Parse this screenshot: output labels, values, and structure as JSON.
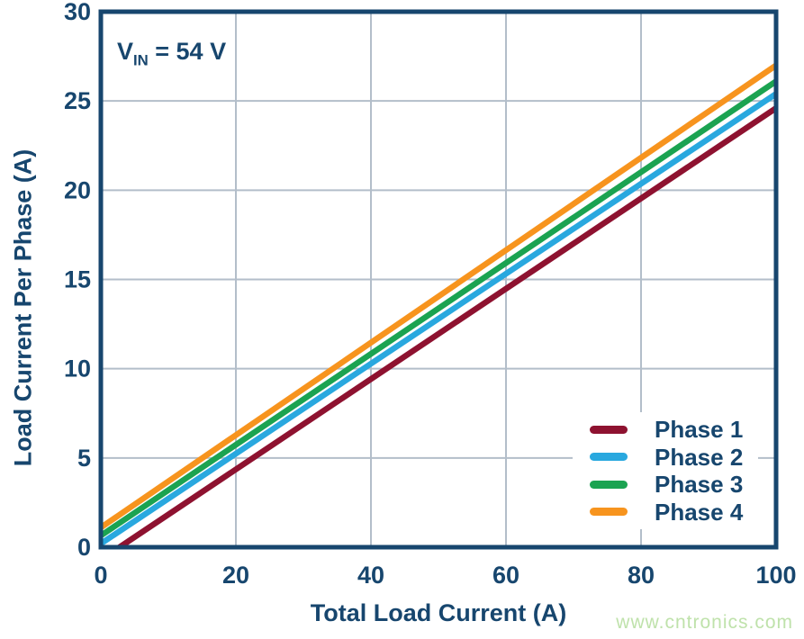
{
  "watermark": {
    "text": "www.cntronics.com"
  },
  "chart_data": {
    "type": "line",
    "title": "",
    "annotation": {
      "prefix": "V",
      "sub": "IN",
      "suffix": " = 54 V"
    },
    "xlabel": "Total Load Current (A)",
    "ylabel": "Load Current Per Phase (A)",
    "xlim": [
      0,
      100
    ],
    "ylim": [
      0,
      30
    ],
    "x_ticks": [
      0,
      20,
      40,
      60,
      80,
      100
    ],
    "y_ticks": [
      0,
      5,
      10,
      15,
      20,
      25,
      30
    ],
    "grid": true,
    "legend_position": "lower right",
    "colors": {
      "grid": "#B3BECA",
      "frame": "#17466E",
      "text": "#17466E",
      "watermark": "#BFE2AB"
    },
    "series": [
      {
        "name": "Phase 1",
        "color": "#8E1230",
        "points": [
          [
            0,
            -0.7
          ],
          [
            100,
            24.6
          ]
        ]
      },
      {
        "name": "Phase 2",
        "color": "#29A8DF",
        "points": [
          [
            0,
            0.2
          ],
          [
            100,
            25.4
          ]
        ]
      },
      {
        "name": "Phase 3",
        "color": "#1BA351",
        "points": [
          [
            0,
            0.65
          ],
          [
            100,
            26.1
          ]
        ]
      },
      {
        "name": "Phase 4",
        "color": "#F7941E",
        "points": [
          [
            0,
            1.1
          ],
          [
            100,
            27.0
          ]
        ]
      }
    ]
  }
}
